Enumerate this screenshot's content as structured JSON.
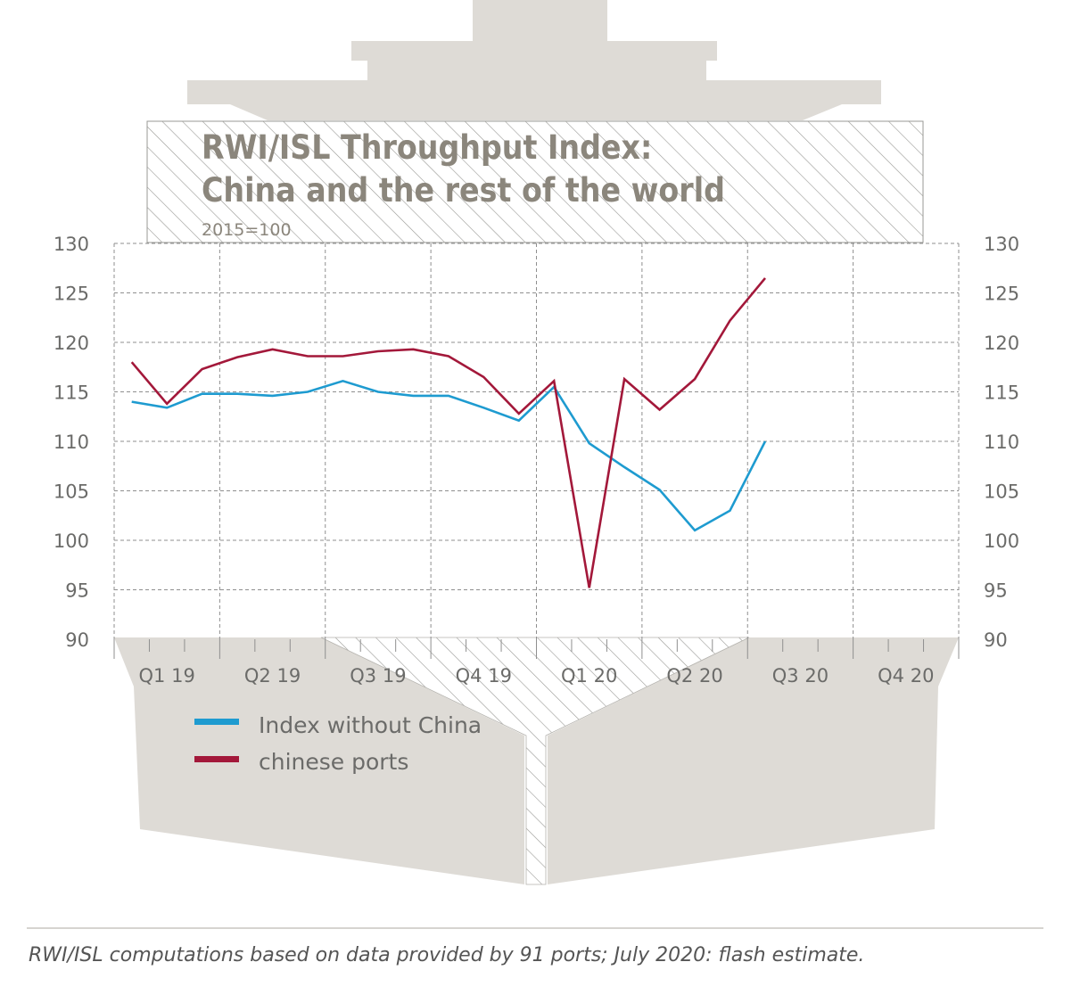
{
  "chart_data": {
    "type": "line",
    "title": "RWI/ISL Throughput Index:",
    "subtitle": "China and the rest of the world",
    "base_note": "2015=100",
    "ylim": [
      90,
      130
    ],
    "y_ticks": [
      130,
      125,
      120,
      115,
      110,
      105,
      100,
      95,
      90
    ],
    "x_domain": [
      0,
      24
    ],
    "quarter_labels": [
      "Q1 19",
      "Q2 19",
      "Q3 19",
      "Q4 19",
      "Q1 20",
      "Q2 20",
      "Q3 20",
      "Q4 20"
    ],
    "x": [
      0.5,
      1.5,
      2.5,
      3.5,
      4.5,
      5.5,
      6.5,
      7.5,
      8.5,
      9.5,
      10.5,
      11.5,
      12.5,
      13.5,
      14.5,
      15.5,
      16.5,
      17.5,
      18.5
    ],
    "series": [
      {
        "name": "Index without China",
        "color": "#1e9bd0",
        "values": [
          114.0,
          113.4,
          114.8,
          114.8,
          114.6,
          115.0,
          116.1,
          115.0,
          114.6,
          114.6,
          113.4,
          112.1,
          115.5,
          109.8,
          107.4,
          105.1,
          101.0,
          103.0,
          110.0
        ]
      },
      {
        "name": "chinese ports",
        "color": "#a3183a",
        "values": [
          118.0,
          113.8,
          117.3,
          118.5,
          119.3,
          118.6,
          118.6,
          119.1,
          119.3,
          118.6,
          116.5,
          112.8,
          116.1,
          95.2,
          116.3,
          113.2,
          116.3,
          122.2,
          126.5
        ]
      }
    ],
    "grid": true,
    "legend_position": "bottom-left"
  },
  "footer": {
    "source": "RWI/ISL computations based on data provided by 91 ports; July 2020: flash estimate."
  }
}
